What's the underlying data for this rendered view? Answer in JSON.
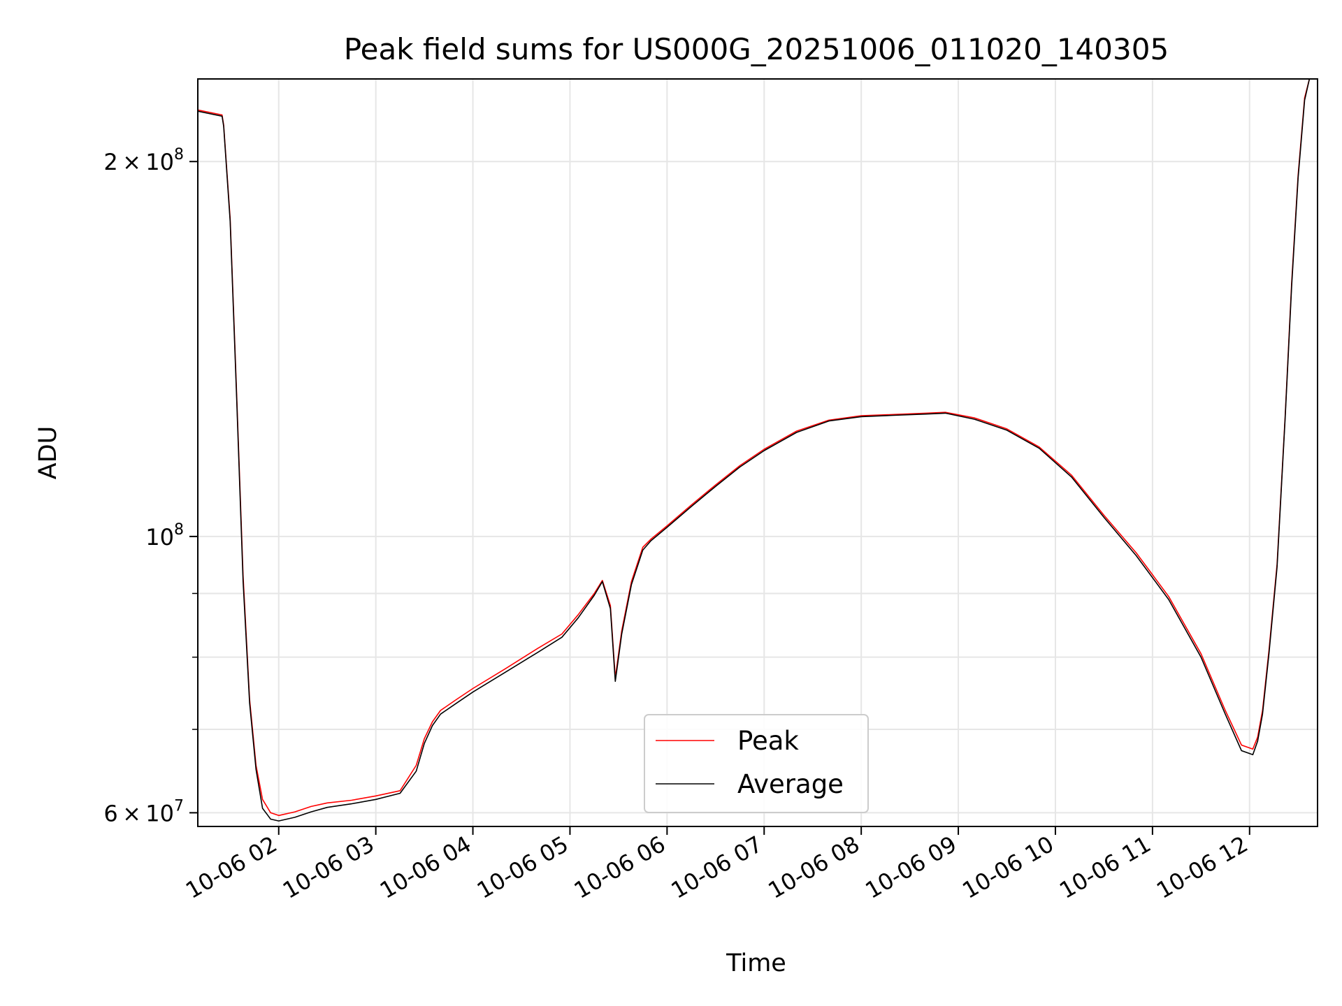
{
  "chart_data": {
    "type": "line",
    "title": "Peak field sums for US000G_20251006_011020_140305",
    "xlabel": "Time",
    "ylabel": "ADU",
    "yscale": "log",
    "xlim": [
      "2025-10-06 01:10",
      "2025-10-06 12:42"
    ],
    "ylim": [
      58500000,
      233000000
    ],
    "grid": true,
    "legend_position": "lower-center",
    "x_ticks": [
      "10-06 02",
      "10-06 03",
      "10-06 04",
      "10-06 05",
      "10-06 06",
      "10-06 07",
      "10-06 08",
      "10-06 09",
      "10-06 10",
      "10-06 11",
      "10-06 12"
    ],
    "y_major_ticks": [
      {
        "value": 60000000,
        "mantissa": "6",
        "exponent": "7"
      },
      {
        "value": 100000000,
        "mantissa": "",
        "exponent": "8"
      },
      {
        "value": 200000000,
        "mantissa": "2",
        "exponent": "8"
      }
    ],
    "y_minor_gridlines": [
      70000000,
      80000000,
      90000000
    ],
    "series": [
      {
        "name": "Peak",
        "color": "#ff0000",
        "x": [
          "2025-10-06 01:10",
          "2025-10-06 01:25",
          "2025-10-06 01:26",
          "2025-10-06 01:30",
          "2025-10-06 01:34",
          "2025-10-06 01:38",
          "2025-10-06 01:42",
          "2025-10-06 01:46",
          "2025-10-06 01:50",
          "2025-10-06 01:55",
          "2025-10-06 02:00",
          "2025-10-06 02:10",
          "2025-10-06 02:20",
          "2025-10-06 02:30",
          "2025-10-06 02:45",
          "2025-10-06 03:00",
          "2025-10-06 03:15",
          "2025-10-06 03:25",
          "2025-10-06 03:30",
          "2025-10-06 03:35",
          "2025-10-06 03:40",
          "2025-10-06 03:50",
          "2025-10-06 04:00",
          "2025-10-06 04:20",
          "2025-10-06 04:40",
          "2025-10-06 04:55",
          "2025-10-06 05:05",
          "2025-10-06 05:15",
          "2025-10-06 05:20",
          "2025-10-06 05:25",
          "2025-10-06 05:28",
          "2025-10-06 05:32",
          "2025-10-06 05:38",
          "2025-10-06 05:45",
          "2025-10-06 05:50",
          "2025-10-06 06:00",
          "2025-10-06 06:15",
          "2025-10-06 06:30",
          "2025-10-06 06:45",
          "2025-10-06 07:00",
          "2025-10-06 07:20",
          "2025-10-06 07:40",
          "2025-10-06 08:00",
          "2025-10-06 08:20",
          "2025-10-06 08:40",
          "2025-10-06 08:52",
          "2025-10-06 09:10",
          "2025-10-06 09:30",
          "2025-10-06 09:50",
          "2025-10-06 10:10",
          "2025-10-06 10:30",
          "2025-10-06 10:50",
          "2025-10-06 11:10",
          "2025-10-06 11:30",
          "2025-10-06 11:45",
          "2025-10-06 11:55",
          "2025-10-06 12:02",
          "2025-10-06 12:05",
          "2025-10-06 12:08",
          "2025-10-06 12:12",
          "2025-10-06 12:17",
          "2025-10-06 12:22",
          "2025-10-06 12:26",
          "2025-10-06 12:30",
          "2025-10-06 12:34",
          "2025-10-06 12:37"
        ],
        "values": [
          220000000,
          218000000,
          214000000,
          180000000,
          130000000,
          93000000,
          74000000,
          65500000,
          61500000,
          60000000,
          59700000,
          60100000,
          60700000,
          61100000,
          61400000,
          61900000,
          62500000,
          65500000,
          68800000,
          71000000,
          72500000,
          74000000,
          75500000,
          78300000,
          81300000,
          83500000,
          86500000,
          90000000,
          92200000,
          88000000,
          77000000,
          84000000,
          92000000,
          98000000,
          99500000,
          102000000,
          106000000,
          110000000,
          114000000,
          117500000,
          121500000,
          124000000,
          125000000,
          125300000,
          125600000,
          125800000,
          124500000,
          122000000,
          118000000,
          112000000,
          104000000,
          97000000,
          89500000,
          80500000,
          72500000,
          68000000,
          67500000,
          69000000,
          72500000,
          81000000,
          95000000,
          125000000,
          160000000,
          195000000,
          225000000,
          233000000
        ]
      },
      {
        "name": "Average",
        "color": "#000000",
        "x": [
          "2025-10-06 01:10",
          "2025-10-06 01:25",
          "2025-10-06 01:26",
          "2025-10-06 01:30",
          "2025-10-06 01:34",
          "2025-10-06 01:38",
          "2025-10-06 01:42",
          "2025-10-06 01:46",
          "2025-10-06 01:50",
          "2025-10-06 01:55",
          "2025-10-06 02:00",
          "2025-10-06 02:10",
          "2025-10-06 02:20",
          "2025-10-06 02:30",
          "2025-10-06 02:45",
          "2025-10-06 03:00",
          "2025-10-06 03:15",
          "2025-10-06 03:25",
          "2025-10-06 03:30",
          "2025-10-06 03:35",
          "2025-10-06 03:40",
          "2025-10-06 03:50",
          "2025-10-06 04:00",
          "2025-10-06 04:20",
          "2025-10-06 04:40",
          "2025-10-06 04:55",
          "2025-10-06 05:05",
          "2025-10-06 05:15",
          "2025-10-06 05:20",
          "2025-10-06 05:25",
          "2025-10-06 05:28",
          "2025-10-06 05:32",
          "2025-10-06 05:38",
          "2025-10-06 05:45",
          "2025-10-06 05:50",
          "2025-10-06 06:00",
          "2025-10-06 06:15",
          "2025-10-06 06:30",
          "2025-10-06 06:45",
          "2025-10-06 07:00",
          "2025-10-06 07:20",
          "2025-10-06 07:40",
          "2025-10-06 08:00",
          "2025-10-06 08:20",
          "2025-10-06 08:40",
          "2025-10-06 08:52",
          "2025-10-06 09:10",
          "2025-10-06 09:30",
          "2025-10-06 09:50",
          "2025-10-06 10:10",
          "2025-10-06 10:30",
          "2025-10-06 10:50",
          "2025-10-06 11:10",
          "2025-10-06 11:30",
          "2025-10-06 11:45",
          "2025-10-06 11:55",
          "2025-10-06 12:02",
          "2025-10-06 12:05",
          "2025-10-06 12:08",
          "2025-10-06 12:12",
          "2025-10-06 12:17",
          "2025-10-06 12:22",
          "2025-10-06 12:26",
          "2025-10-06 12:30",
          "2025-10-06 12:34",
          "2025-10-06 12:37"
        ],
        "values": [
          219500000,
          217500000,
          213500000,
          179000000,
          129000000,
          92000000,
          73500000,
          65000000,
          60500000,
          59300000,
          59100000,
          59500000,
          60100000,
          60600000,
          61000000,
          61500000,
          62200000,
          64800000,
          68200000,
          70500000,
          72000000,
          73500000,
          75000000,
          77800000,
          80700000,
          83000000,
          86000000,
          89700000,
          92000000,
          87500000,
          76500000,
          83500000,
          91500000,
          97500000,
          99200000,
          101700000,
          105700000,
          109700000,
          113700000,
          117200000,
          121200000,
          123800000,
          124800000,
          125100000,
          125400000,
          125600000,
          124200000,
          121700000,
          117700000,
          111600000,
          103600000,
          96500000,
          89000000,
          80000000,
          72000000,
          67300000,
          66800000,
          68500000,
          72000000,
          80500000,
          94500000,
          124500000,
          159000000,
          194000000,
          224000000,
          233000000
        ]
      }
    ]
  }
}
